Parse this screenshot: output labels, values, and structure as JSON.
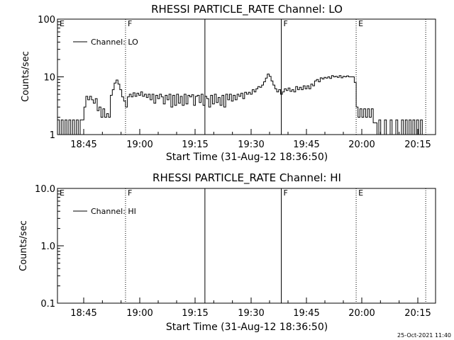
{
  "footer_timestamp": "25-Oct-2021 11:40",
  "chart_data": [
    {
      "type": "line",
      "title": "RHESSI PARTICLE_RATE Channel: LO",
      "xlabel": "Start Time (31-Aug-12 18:36:50)",
      "ylabel": "Counts/sec",
      "yscale": "log",
      "ylim": [
        1,
        100
      ],
      "xlim_minutes": [
        0,
        100
      ],
      "xtick_labels": [
        "18:45",
        "19:00",
        "19:15",
        "19:30",
        "19:45",
        "20:00",
        "20:15"
      ],
      "ytick_labels": [
        "1",
        "10",
        "100"
      ],
      "legend": "Channel: LO",
      "legend_position": "top-left",
      "markers": [
        {
          "label": "E",
          "minute": 0,
          "style": "solid"
        },
        {
          "label": "F",
          "minute": 18.0,
          "style": "dotted"
        },
        {
          "label": "",
          "minute": 39.0,
          "style": "solid"
        },
        {
          "label": "F",
          "minute": 59.2,
          "style": "solid"
        },
        {
          "label": "E",
          "minute": 79.0,
          "style": "dotted"
        },
        {
          "label": "",
          "minute": 97.4,
          "style": "dotted"
        }
      ],
      "series": [
        {
          "name": "Channel: LO",
          "points": [
            [
              0.0,
              1.8
            ],
            [
              0.5,
              1.0
            ],
            [
              1.0,
              1.8
            ],
            [
              1.5,
              1.0
            ],
            [
              2.0,
              1.8
            ],
            [
              2.5,
              1.0
            ],
            [
              3.0,
              1.8
            ],
            [
              3.5,
              1.0
            ],
            [
              4.0,
              1.8
            ],
            [
              4.5,
              1.0
            ],
            [
              5.0,
              1.8
            ],
            [
              5.5,
              1.0
            ],
            [
              6.0,
              1.8
            ],
            [
              6.5,
              1.8
            ],
            [
              7.0,
              3.0
            ],
            [
              7.5,
              4.6
            ],
            [
              8.0,
              4.0
            ],
            [
              8.5,
              4.6
            ],
            [
              9.0,
              4.0
            ],
            [
              9.5,
              3.5
            ],
            [
              10.0,
              4.2
            ],
            [
              10.5,
              2.6
            ],
            [
              11.0,
              3.0
            ],
            [
              11.5,
              2.0
            ],
            [
              12.0,
              2.8
            ],
            [
              12.5,
              2.0
            ],
            [
              13.0,
              2.3
            ],
            [
              13.5,
              2.0
            ],
            [
              14.0,
              4.8
            ],
            [
              14.5,
              6.0
            ],
            [
              15.0,
              7.8
            ],
            [
              15.5,
              8.8
            ],
            [
              16.0,
              7.5
            ],
            [
              16.5,
              6.0
            ],
            [
              17.0,
              4.5
            ],
            [
              17.5,
              3.8
            ],
            [
              18.0,
              3.0
            ],
            [
              18.5,
              4.5
            ],
            [
              19.0,
              5.0
            ],
            [
              19.5,
              4.5
            ],
            [
              20.0,
              5.3
            ],
            [
              20.5,
              4.6
            ],
            [
              21.0,
              5.2
            ],
            [
              21.5,
              4.8
            ],
            [
              22.0,
              5.5
            ],
            [
              22.5,
              4.6
            ],
            [
              23.0,
              5.0
            ],
            [
              23.5,
              4.4
            ],
            [
              24.0,
              5.0
            ],
            [
              24.5,
              4.0
            ],
            [
              25.0,
              5.0
            ],
            [
              25.5,
              3.5
            ],
            [
              26.0,
              4.8
            ],
            [
              26.5,
              4.2
            ],
            [
              27.0,
              5.0
            ],
            [
              27.5,
              4.5
            ],
            [
              28.0,
              3.4
            ],
            [
              28.5,
              4.8
            ],
            [
              29.0,
              4.0
            ],
            [
              29.5,
              5.0
            ],
            [
              30.0,
              3.0
            ],
            [
              30.5,
              4.8
            ],
            [
              31.0,
              3.2
            ],
            [
              31.5,
              5.0
            ],
            [
              32.0,
              3.5
            ],
            [
              32.5,
              4.6
            ],
            [
              33.0,
              3.2
            ],
            [
              33.5,
              5.0
            ],
            [
              34.0,
              3.4
            ],
            [
              34.5,
              4.8
            ],
            [
              35.0,
              4.5
            ],
            [
              35.5,
              4.9
            ],
            [
              36.0,
              3.2
            ],
            [
              36.5,
              4.6
            ],
            [
              37.0,
              4.8
            ],
            [
              37.5,
              3.6
            ],
            [
              38.0,
              5.0
            ],
            [
              38.5,
              3.2
            ],
            [
              39.0,
              4.6
            ],
            [
              39.5,
              4.2
            ],
            [
              40.0,
              3.0
            ],
            [
              40.5,
              4.8
            ],
            [
              41.0,
              3.4
            ],
            [
              41.5,
              5.0
            ],
            [
              42.0,
              3.6
            ],
            [
              42.5,
              4.4
            ],
            [
              43.0,
              3.2
            ],
            [
              43.5,
              4.8
            ],
            [
              44.0,
              3.0
            ],
            [
              44.5,
              5.0
            ],
            [
              45.0,
              4.0
            ],
            [
              45.5,
              5.0
            ],
            [
              46.0,
              3.8
            ],
            [
              46.5,
              4.8
            ],
            [
              47.0,
              4.0
            ],
            [
              47.5,
              5.0
            ],
            [
              48.0,
              4.6
            ],
            [
              48.5,
              5.2
            ],
            [
              49.0,
              4.2
            ],
            [
              49.5,
              5.4
            ],
            [
              50.0,
              5.0
            ],
            [
              50.5,
              5.4
            ],
            [
              51.0,
              5.0
            ],
            [
              51.5,
              6.0
            ],
            [
              52.0,
              5.5
            ],
            [
              52.5,
              6.2
            ],
            [
              53.0,
              6.8
            ],
            [
              53.5,
              6.6
            ],
            [
              54.0,
              7.2
            ],
            [
              54.5,
              8.2
            ],
            [
              55.0,
              9.5
            ],
            [
              55.5,
              11.2
            ],
            [
              56.0,
              10.2
            ],
            [
              56.5,
              8.5
            ],
            [
              57.0,
              7.2
            ],
            [
              57.5,
              6.2
            ],
            [
              58.0,
              5.5
            ],
            [
              58.5,
              6.0
            ],
            [
              59.0,
              5.0
            ],
            [
              59.5,
              5.5
            ],
            [
              60.0,
              6.2
            ],
            [
              60.5,
              5.8
            ],
            [
              61.0,
              6.4
            ],
            [
              61.5,
              5.6
            ],
            [
              62.0,
              6.0
            ],
            [
              62.5,
              5.5
            ],
            [
              63.0,
              6.8
            ],
            [
              63.5,
              6.0
            ],
            [
              64.0,
              6.6
            ],
            [
              64.5,
              6.0
            ],
            [
              65.0,
              7.0
            ],
            [
              65.5,
              6.2
            ],
            [
              66.0,
              7.0
            ],
            [
              66.5,
              6.2
            ],
            [
              67.0,
              7.5
            ],
            [
              67.5,
              7.0
            ],
            [
              68.0,
              8.5
            ],
            [
              68.5,
              9.0
            ],
            [
              69.0,
              8.2
            ],
            [
              69.5,
              9.6
            ],
            [
              70.0,
              9.2
            ],
            [
              70.5,
              9.8
            ],
            [
              71.0,
              9.5
            ],
            [
              71.5,
              10.0
            ],
            [
              72.0,
              9.4
            ],
            [
              72.5,
              10.5
            ],
            [
              73.0,
              10.0
            ],
            [
              73.5,
              10.2
            ],
            [
              74.0,
              9.8
            ],
            [
              74.5,
              10.5
            ],
            [
              75.0,
              9.6
            ],
            [
              75.5,
              10.2
            ],
            [
              76.0,
              10.0
            ],
            [
              76.5,
              10.4
            ],
            [
              77.0,
              10.0
            ],
            [
              77.5,
              10.0
            ],
            [
              78.0,
              10.0
            ],
            [
              78.5,
              8.0
            ],
            [
              79.0,
              3.0
            ],
            [
              79.5,
              2.0
            ],
            [
              80.0,
              2.8
            ],
            [
              80.5,
              2.0
            ],
            [
              81.0,
              2.8
            ],
            [
              81.5,
              2.0
            ],
            [
              82.0,
              2.8
            ],
            [
              82.5,
              2.0
            ],
            [
              83.0,
              2.8
            ],
            [
              83.5,
              1.6
            ],
            [
              84.0,
              1.6
            ],
            [
              84.5,
              1.0
            ],
            [
              85.0,
              1.8
            ],
            [
              85.5,
              1.0
            ],
            [
              86.0,
              1.0
            ],
            [
              86.5,
              1.8
            ],
            [
              87.0,
              1.0
            ],
            [
              87.5,
              1.0
            ],
            [
              88.0,
              1.8
            ],
            [
              88.5,
              1.0
            ],
            [
              89.0,
              1.0
            ],
            [
              89.5,
              1.8
            ],
            [
              90.0,
              1.0
            ],
            [
              90.5,
              1.0
            ],
            [
              91.0,
              1.8
            ],
            [
              91.5,
              1.0
            ],
            [
              92.0,
              1.8
            ],
            [
              92.5,
              1.0
            ],
            [
              93.0,
              1.8
            ],
            [
              93.5,
              1.0
            ],
            [
              94.0,
              1.8
            ],
            [
              94.5,
              1.0
            ],
            [
              95.0,
              1.8
            ],
            [
              95.5,
              1.0
            ],
            [
              96.0,
              1.8
            ],
            [
              96.5,
              1.0
            ]
          ]
        }
      ]
    },
    {
      "type": "line",
      "title": "RHESSI PARTICLE_RATE Channel: HI",
      "xlabel": "Start Time (31-Aug-12 18:36:50)",
      "ylabel": "Counts/sec",
      "yscale": "log",
      "ylim": [
        0.1,
        10
      ],
      "xlim_minutes": [
        0,
        100
      ],
      "xtick_labels": [
        "18:45",
        "19:00",
        "19:15",
        "19:30",
        "19:45",
        "20:00",
        "20:15"
      ],
      "ytick_labels": [
        "0.1",
        "1.0",
        "10.0"
      ],
      "legend": "Channel: HI",
      "legend_position": "top-left",
      "markers": [
        {
          "label": "E",
          "minute": 0,
          "style": "solid"
        },
        {
          "label": "F",
          "minute": 18.0,
          "style": "dotted"
        },
        {
          "label": "",
          "minute": 39.0,
          "style": "solid"
        },
        {
          "label": "F",
          "minute": 59.2,
          "style": "solid"
        },
        {
          "label": "E",
          "minute": 79.0,
          "style": "dotted"
        },
        {
          "label": "",
          "minute": 97.4,
          "style": "dotted"
        }
      ],
      "series": [
        {
          "name": "Channel: HI",
          "points": []
        }
      ]
    }
  ]
}
